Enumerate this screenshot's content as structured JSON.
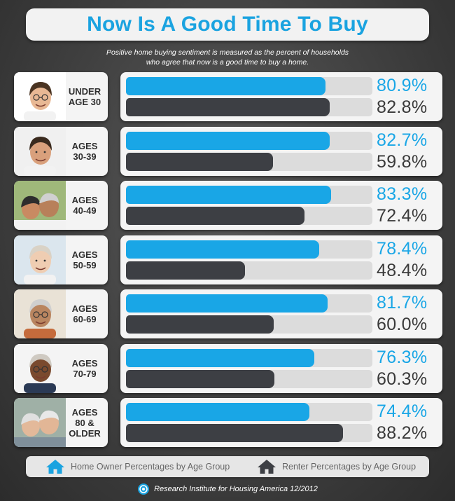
{
  "title": "Now Is A Good Time To Buy",
  "subtitle_lines": [
    "Positive home buying sentiment is measured as the percent of households",
    "who agree that now is a good time to buy a home."
  ],
  "colors": {
    "owner": "#19a6e6",
    "renter": "#3d3f44",
    "title": "#1aa3e0"
  },
  "legend": [
    {
      "label": "Home Owner Percentages by Age Group",
      "icon": "house-icon",
      "color": "#1aa3e0"
    },
    {
      "label": "Renter Percentages by Age Group",
      "icon": "house-icon",
      "color": "#3d3f44"
    }
  ],
  "source": "Research Institute for Housing America 12/2012",
  "chart_data": {
    "type": "bar",
    "orientation": "horizontal",
    "categories": [
      [
        "UNDER",
        "AGE 30"
      ],
      [
        "AGES",
        "30-39"
      ],
      [
        "AGES",
        "40-49"
      ],
      [
        "AGES",
        "50-59"
      ],
      [
        "AGES",
        "60-69"
      ],
      [
        "AGES",
        "70-79"
      ],
      [
        "AGES",
        "80 &",
        "OLDER"
      ]
    ],
    "series": [
      {
        "name": "Home Owner Percentages by Age Group",
        "values": [
          80.9,
          82.7,
          83.3,
          78.4,
          81.7,
          76.3,
          74.4
        ]
      },
      {
        "name": "Renter Percentages by Age Group",
        "values": [
          82.8,
          59.8,
          72.4,
          48.4,
          60.0,
          60.3,
          88.2
        ]
      }
    ],
    "value_labels": [
      [
        "80.9%",
        "82.8%"
      ],
      [
        "82.7%",
        "59.8%"
      ],
      [
        "83.3%",
        "72.4%"
      ],
      [
        "78.4%",
        "48.4%"
      ],
      [
        "81.7%",
        "60.0%"
      ],
      [
        "76.3%",
        "60.3%"
      ],
      [
        "74.4%",
        "88.2%"
      ]
    ],
    "xlim": [
      0,
      100
    ],
    "grid": false,
    "legend_position": "bottom"
  }
}
